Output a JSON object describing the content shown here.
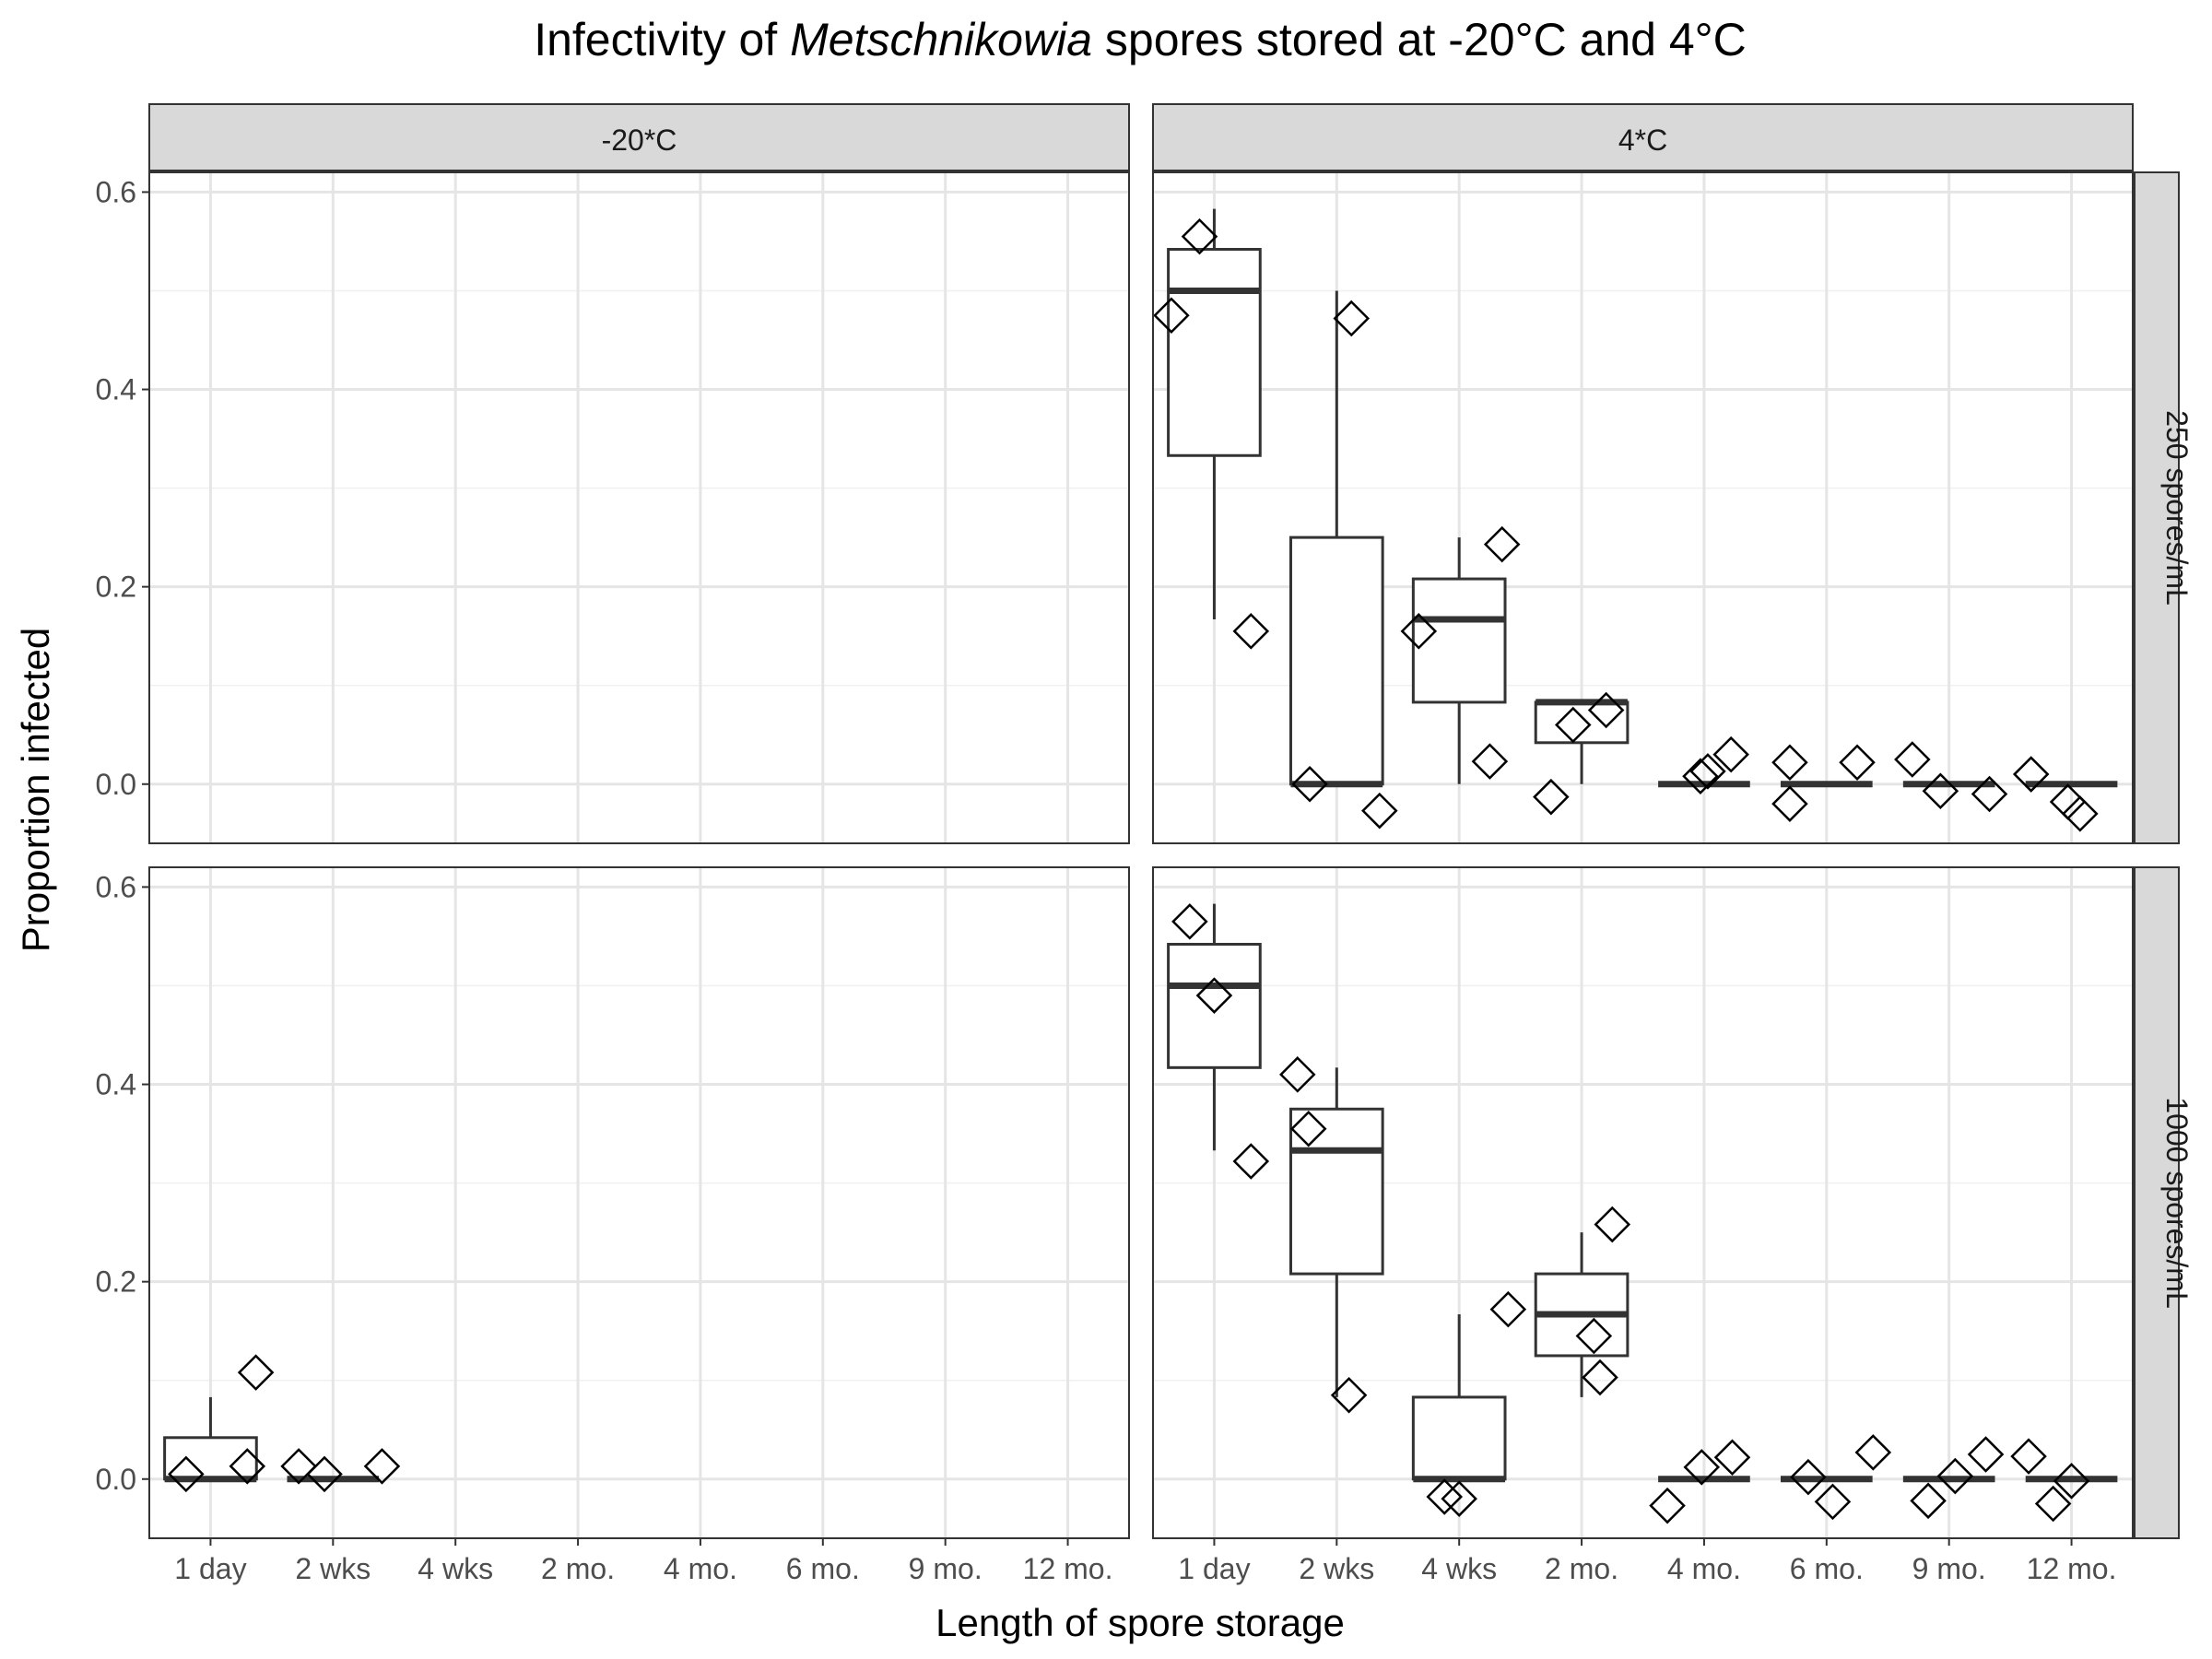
{
  "chart_data": {
    "type": "box",
    "title": {
      "prefix": "Infectivity of ",
      "italic": "Metschnikowia",
      "suffix": " spores stored at -20°C and 4°C"
    },
    "xlabel": "Length of spore storage",
    "ylabel": "Proportion infected",
    "ylim": [
      -0.06,
      0.62
    ],
    "yticks": [
      0.0,
      0.2,
      0.4,
      0.6
    ],
    "ytick_labels": [
      "0.0",
      "0.2",
      "0.4",
      "0.6"
    ],
    "grid": true,
    "categories": [
      "1 day",
      "2 wks",
      "4 wks",
      "2 mo.",
      "4 mo.",
      "6 mo.",
      "9 mo.",
      "12 mo."
    ],
    "columns": [
      "-20*C",
      "4*C"
    ],
    "rows": [
      "250 spores/mL",
      "1000 spores/mL"
    ],
    "panels": [
      {
        "col": 0,
        "row": 0,
        "boxes": [],
        "points": []
      },
      {
        "col": 1,
        "row": 0,
        "boxes": [
          {
            "cat": 0,
            "min": 0.167,
            "q1": 0.333,
            "median": 0.5,
            "q3": 0.542,
            "max": 0.583
          },
          {
            "cat": 1,
            "min": 0.0,
            "q1": 0.0,
            "median": 0.0,
            "q3": 0.25,
            "max": 0.5
          },
          {
            "cat": 2,
            "min": 0.0,
            "q1": 0.083,
            "median": 0.167,
            "q3": 0.208,
            "max": 0.25
          },
          {
            "cat": 3,
            "min": 0.0,
            "q1": 0.042,
            "median": 0.083,
            "q3": 0.083,
            "max": 0.083
          },
          {
            "cat": 4,
            "min": 0.0,
            "q1": 0.0,
            "median": 0.0,
            "q3": 0.0,
            "max": 0.0
          },
          {
            "cat": 5,
            "min": 0.0,
            "q1": 0.0,
            "median": 0.0,
            "q3": 0.0,
            "max": 0.0
          },
          {
            "cat": 6,
            "min": 0.0,
            "q1": 0.0,
            "median": 0.0,
            "q3": 0.0,
            "max": 0.0
          },
          {
            "cat": 7,
            "min": 0.0,
            "q1": 0.0,
            "median": 0.0,
            "q3": 0.0,
            "max": 0.0
          }
        ],
        "points": [
          {
            "cat": 0,
            "x": -0.35,
            "y": 0.475
          },
          {
            "cat": 0,
            "x": -0.12,
            "y": 0.555
          },
          {
            "cat": 0,
            "x": 0.3,
            "y": 0.155
          },
          {
            "cat": 1,
            "x": -0.22,
            "y": 0.0
          },
          {
            "cat": 1,
            "x": 0.12,
            "y": 0.472
          },
          {
            "cat": 1,
            "x": 0.35,
            "y": -0.027
          },
          {
            "cat": 2,
            "x": -0.33,
            "y": 0.155
          },
          {
            "cat": 2,
            "x": 0.25,
            "y": 0.023
          },
          {
            "cat": 2,
            "x": 0.35,
            "y": 0.243
          },
          {
            "cat": 3,
            "x": -0.25,
            "y": -0.013
          },
          {
            "cat": 3,
            "x": -0.07,
            "y": 0.06
          },
          {
            "cat": 3,
            "x": 0.2,
            "y": 0.075
          },
          {
            "cat": 4,
            "x": -0.03,
            "y": 0.008
          },
          {
            "cat": 4,
            "x": 0.03,
            "y": 0.013
          },
          {
            "cat": 4,
            "x": 0.22,
            "y": 0.03
          },
          {
            "cat": 5,
            "x": -0.3,
            "y": -0.02
          },
          {
            "cat": 5,
            "x": -0.3,
            "y": 0.022
          },
          {
            "cat": 5,
            "x": 0.25,
            "y": 0.022
          },
          {
            "cat": 6,
            "x": -0.3,
            "y": 0.025
          },
          {
            "cat": 6,
            "x": -0.07,
            "y": -0.007
          },
          {
            "cat": 6,
            "x": 0.33,
            "y": -0.01
          },
          {
            "cat": 7,
            "x": -0.33,
            "y": 0.01
          },
          {
            "cat": 7,
            "x": -0.03,
            "y": -0.018
          },
          {
            "cat": 7,
            "x": 0.07,
            "y": -0.03
          }
        ]
      },
      {
        "col": 0,
        "row": 1,
        "boxes": [
          {
            "cat": 0,
            "min": 0.0,
            "q1": 0.0,
            "median": 0.0,
            "q3": 0.042,
            "max": 0.083
          },
          {
            "cat": 1,
            "min": 0.0,
            "q1": 0.0,
            "median": 0.0,
            "q3": 0.0,
            "max": 0.0
          }
        ],
        "points": [
          {
            "cat": 0,
            "x": -0.2,
            "y": 0.005
          },
          {
            "cat": 0,
            "x": 0.3,
            "y": 0.013
          },
          {
            "cat": 0,
            "x": 0.37,
            "y": 0.108
          },
          {
            "cat": 1,
            "x": -0.28,
            "y": 0.013
          },
          {
            "cat": 1,
            "x": -0.07,
            "y": 0.005
          },
          {
            "cat": 1,
            "x": 0.4,
            "y": 0.013
          }
        ]
      },
      {
        "col": 1,
        "row": 1,
        "boxes": [
          {
            "cat": 0,
            "min": 0.333,
            "q1": 0.417,
            "median": 0.5,
            "q3": 0.542,
            "max": 0.583
          },
          {
            "cat": 1,
            "min": 0.083,
            "q1": 0.208,
            "median": 0.333,
            "q3": 0.375,
            "max": 0.417
          },
          {
            "cat": 2,
            "min": 0.0,
            "q1": 0.0,
            "median": 0.0,
            "q3": 0.083,
            "max": 0.167
          },
          {
            "cat": 3,
            "min": 0.083,
            "q1": 0.125,
            "median": 0.167,
            "q3": 0.208,
            "max": 0.25
          },
          {
            "cat": 4,
            "min": 0.0,
            "q1": 0.0,
            "median": 0.0,
            "q3": 0.0,
            "max": 0.0
          },
          {
            "cat": 5,
            "min": 0.0,
            "q1": 0.0,
            "median": 0.0,
            "q3": 0.0,
            "max": 0.0
          },
          {
            "cat": 6,
            "min": 0.0,
            "q1": 0.0,
            "median": 0.0,
            "q3": 0.0,
            "max": 0.0
          },
          {
            "cat": 7,
            "min": 0.0,
            "q1": 0.0,
            "median": 0.0,
            "q3": 0.0,
            "max": 0.0
          }
        ],
        "points": [
          {
            "cat": 0,
            "x": -0.2,
            "y": 0.565
          },
          {
            "cat": 0,
            "x": 0.0,
            "y": 0.49
          },
          {
            "cat": 0,
            "x": 0.3,
            "y": 0.322
          },
          {
            "cat": 1,
            "x": -0.32,
            "y": 0.41
          },
          {
            "cat": 1,
            "x": -0.23,
            "y": 0.355
          },
          {
            "cat": 1,
            "x": 0.1,
            "y": 0.085
          },
          {
            "cat": 2,
            "x": -0.12,
            "y": -0.018
          },
          {
            "cat": 2,
            "x": 0.0,
            "y": -0.02
          },
          {
            "cat": 2,
            "x": 0.4,
            "y": 0.172
          },
          {
            "cat": 3,
            "x": 0.1,
            "y": 0.145
          },
          {
            "cat": 3,
            "x": 0.15,
            "y": 0.103
          },
          {
            "cat": 3,
            "x": 0.25,
            "y": 0.258
          },
          {
            "cat": 4,
            "x": -0.3,
            "y": -0.027
          },
          {
            "cat": 4,
            "x": -0.02,
            "y": 0.012
          },
          {
            "cat": 4,
            "x": 0.23,
            "y": 0.022
          },
          {
            "cat": 5,
            "x": -0.15,
            "y": 0.002
          },
          {
            "cat": 5,
            "x": 0.05,
            "y": -0.023
          },
          {
            "cat": 5,
            "x": 0.38,
            "y": 0.027
          },
          {
            "cat": 6,
            "x": -0.17,
            "y": -0.022
          },
          {
            "cat": 6,
            "x": 0.05,
            "y": 0.003
          },
          {
            "cat": 6,
            "x": 0.3,
            "y": 0.025
          },
          {
            "cat": 7,
            "x": -0.35,
            "y": 0.023
          },
          {
            "cat": 7,
            "x": -0.15,
            "y": -0.025
          },
          {
            "cat": 7,
            "x": 0.0,
            "y": -0.002
          }
        ]
      }
    ]
  }
}
